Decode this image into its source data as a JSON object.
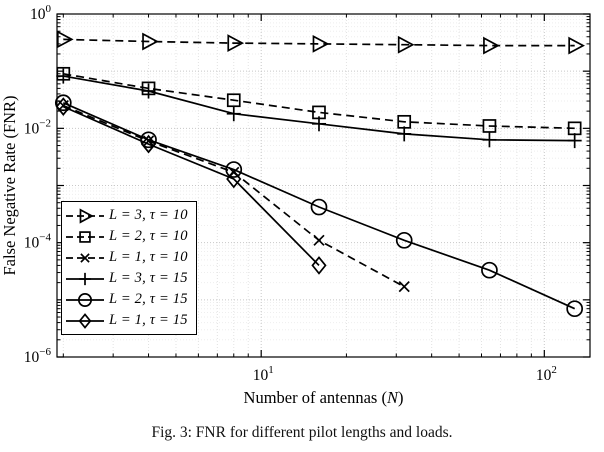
{
  "figure": {
    "caption": "Fig. 3: FNR for different pilot lengths and loads."
  },
  "chart_data": {
    "type": "line",
    "title": "",
    "xlabel": "Number of antennas (N)",
    "ylabel": "False Negative Rate (FNR)",
    "x_scale": "log",
    "y_scale": "log",
    "xlim": [
      1.9,
      145
    ],
    "ylim": [
      1e-06,
      1
    ],
    "grid": true,
    "legend_position": "lower-left-inside",
    "x_ticks": [
      {
        "value": 10,
        "base": "10",
        "exp": "1"
      },
      {
        "value": 100,
        "base": "10",
        "exp": "2"
      }
    ],
    "y_ticks": [
      {
        "value": 1,
        "base": "10",
        "exp": "0"
      },
      {
        "value": 0.01,
        "base": "10",
        "exp": "−2"
      },
      {
        "value": 0.0001,
        "base": "10",
        "exp": "−4"
      },
      {
        "value": 1e-06,
        "base": "10",
        "exp": "−6"
      }
    ],
    "x_major": [
      10,
      100
    ],
    "y_major": [
      0.1,
      0.01,
      0.001,
      0.0001,
      1e-05
    ],
    "colors": {
      "line": "#000000",
      "grid_major": "#c8c8c8",
      "grid_minor": "#e2e2e2"
    },
    "series": [
      {
        "name": "L = 3, τ = 10",
        "line": "dashed",
        "marker": "triangle-right",
        "x": [
          2,
          4,
          8,
          16,
          32,
          64,
          128
        ],
        "y": [
          0.36,
          0.33,
          0.31,
          0.3,
          0.29,
          0.28,
          0.28
        ]
      },
      {
        "name": "L = 2, τ = 10",
        "line": "dashed",
        "marker": "square",
        "x": [
          2,
          4,
          8,
          16,
          32,
          64,
          128
        ],
        "y": [
          0.09,
          0.05,
          0.031,
          0.019,
          0.013,
          0.011,
          0.01
        ]
      },
      {
        "name": "L = 1, τ = 10",
        "line": "dashed",
        "marker": "x",
        "x": [
          2,
          4,
          8,
          16,
          32
        ],
        "y": [
          0.025,
          0.006,
          0.0017,
          0.00011,
          1.7e-05
        ]
      },
      {
        "name": "L = 3, τ = 15",
        "line": "solid",
        "marker": "plus",
        "x": [
          2,
          4,
          8,
          16,
          32,
          64,
          128
        ],
        "y": [
          0.082,
          0.045,
          0.018,
          0.012,
          0.008,
          0.0063,
          0.0061
        ]
      },
      {
        "name": "L = 2, τ = 15",
        "line": "solid",
        "marker": "circle",
        "x": [
          2,
          4,
          8,
          16,
          32,
          64,
          128
        ],
        "y": [
          0.028,
          0.0063,
          0.0019,
          0.00042,
          0.00011,
          3.3e-05,
          7e-06
        ]
      },
      {
        "name": "L = 1, τ = 15",
        "line": "solid",
        "marker": "diamond",
        "x": [
          2,
          4,
          8,
          16
        ],
        "y": [
          0.024,
          0.0053,
          0.0013,
          4e-05
        ]
      }
    ]
  }
}
